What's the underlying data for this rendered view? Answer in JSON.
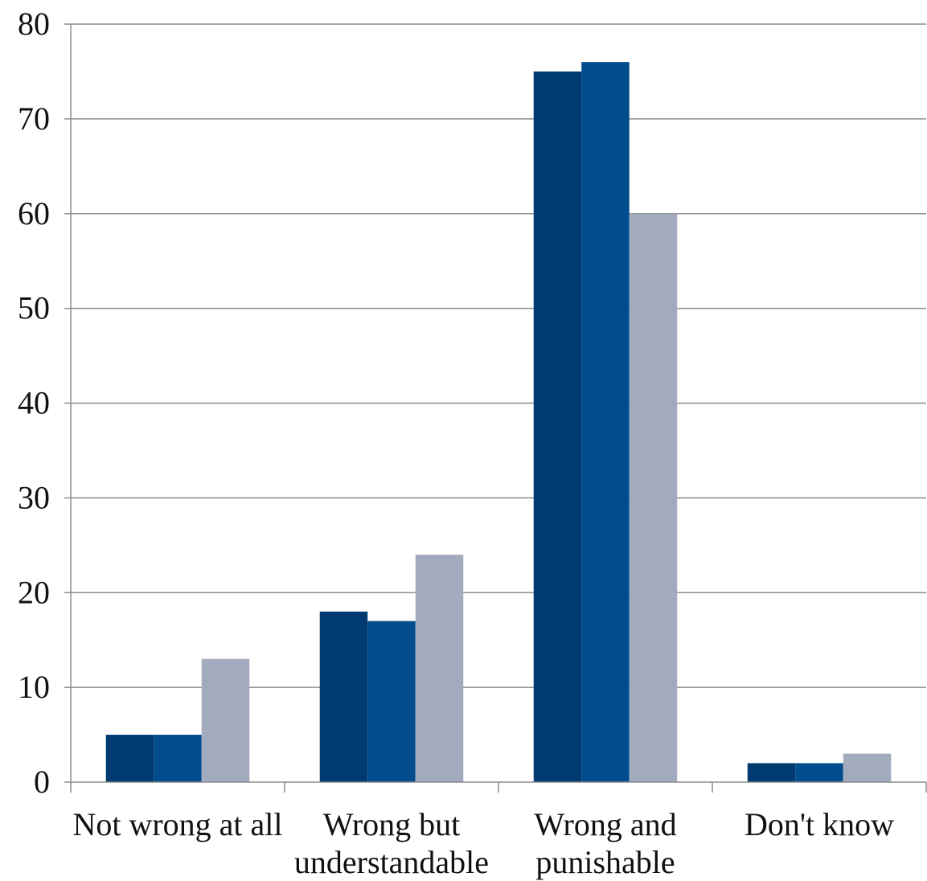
{
  "chart_data": {
    "type": "bar",
    "categories": [
      [
        "Not wrong at all"
      ],
      [
        "Wrong but",
        "understandable"
      ],
      [
        "Wrong and",
        "punishable"
      ],
      [
        "Don't know"
      ]
    ],
    "series": [
      {
        "values": [
          5,
          18,
          75,
          2
        ],
        "color": "#003a70"
      },
      {
        "values": [
          5,
          17,
          76,
          2
        ],
        "color": "#004c8c"
      },
      {
        "values": [
          13,
          24,
          60,
          3
        ],
        "color": "#a2aabd"
      }
    ],
    "ylim": [
      0,
      80
    ],
    "yticks": [
      0,
      10,
      20,
      30,
      40,
      50,
      60,
      70,
      80
    ],
    "grid": true,
    "legend": "none"
  }
}
